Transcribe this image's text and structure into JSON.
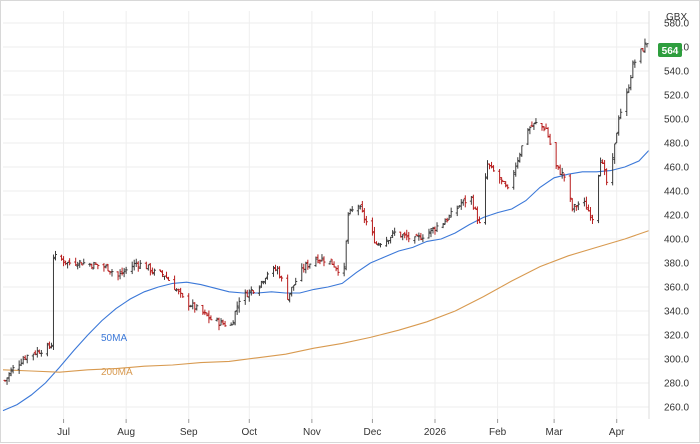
{
  "chart_data": {
    "type": "ohlc",
    "currency_label": "GBX",
    "last_price_label": "564",
    "y_axis": {
      "ylim": [
        250,
        590
      ],
      "ticks": [
        260.0,
        280.0,
        300.0,
        320.0,
        340.0,
        360.0,
        380.0,
        400.0,
        420.0,
        440.0,
        460.0,
        480.0,
        500.0,
        520.0,
        540.0,
        560.0,
        580.0
      ]
    },
    "x_axis": {
      "start_date": "2025-06-01",
      "end_date": "2026-04-17",
      "ticks": [
        {
          "date": "2025-07-01",
          "label": "Jul"
        },
        {
          "date": "2025-08-01",
          "label": "Aug"
        },
        {
          "date": "2025-09-01",
          "label": "Sep"
        },
        {
          "date": "2025-10-01",
          "label": "Oct"
        },
        {
          "date": "2025-11-01",
          "label": "Nov"
        },
        {
          "date": "2025-12-01",
          "label": "Dec"
        },
        {
          "date": "2026-01-01",
          "label": "2026"
        },
        {
          "date": "2026-02-01",
          "label": "Feb"
        },
        {
          "date": "2026-03-01",
          "label": "Mar"
        },
        {
          "date": "2026-04-01",
          "label": "Apr"
        }
      ]
    },
    "close_series": [
      [
        "2025-06-02",
        282
      ],
      [
        "2025-06-05",
        290
      ],
      [
        "2025-06-09",
        297
      ],
      [
        "2025-06-12",
        302
      ],
      [
        "2025-06-16",
        305
      ],
      [
        "2025-06-19",
        307
      ],
      [
        "2025-06-23",
        309
      ],
      [
        "2025-06-25",
        312
      ],
      [
        "2025-06-26",
        385
      ],
      [
        "2025-06-30",
        383
      ],
      [
        "2025-07-03",
        380
      ],
      [
        "2025-07-08",
        381
      ],
      [
        "2025-07-14",
        379
      ],
      [
        "2025-07-18",
        378
      ],
      [
        "2025-07-23",
        376
      ],
      [
        "2025-07-28",
        369
      ],
      [
        "2025-08-01",
        374
      ],
      [
        "2025-08-06",
        380
      ],
      [
        "2025-08-11",
        377
      ],
      [
        "2025-08-15",
        372
      ],
      [
        "2025-08-20",
        370
      ],
      [
        "2025-08-25",
        360
      ],
      [
        "2025-08-29",
        350
      ],
      [
        "2025-09-03",
        344
      ],
      [
        "2025-09-08",
        338
      ],
      [
        "2025-09-12",
        333
      ],
      [
        "2025-09-17",
        330
      ],
      [
        "2025-09-22",
        328
      ],
      [
        "2025-09-26",
        350
      ],
      [
        "2025-10-01",
        356
      ],
      [
        "2025-10-06",
        362
      ],
      [
        "2025-10-10",
        372
      ],
      [
        "2025-10-15",
        375
      ],
      [
        "2025-10-20",
        352
      ],
      [
        "2025-10-24",
        365
      ],
      [
        "2025-10-28",
        376
      ],
      [
        "2025-11-03",
        384
      ],
      [
        "2025-11-07",
        383
      ],
      [
        "2025-11-11",
        380
      ],
      [
        "2025-11-14",
        375
      ],
      [
        "2025-11-17",
        374
      ],
      [
        "2025-11-19",
        420
      ],
      [
        "2025-11-24",
        428
      ],
      [
        "2025-11-28",
        414
      ],
      [
        "2025-12-03",
        396
      ],
      [
        "2025-12-08",
        400
      ],
      [
        "2025-12-12",
        405
      ],
      [
        "2025-12-17",
        402
      ],
      [
        "2025-12-22",
        399
      ],
      [
        "2025-12-29",
        406
      ],
      [
        "2026-01-05",
        414
      ],
      [
        "2026-01-09",
        420
      ],
      [
        "2026-01-14",
        430
      ],
      [
        "2026-01-19",
        434
      ],
      [
        "2026-01-23",
        412
      ],
      [
        "2026-01-27",
        462
      ],
      [
        "2026-02-02",
        450
      ],
      [
        "2026-02-06",
        440
      ],
      [
        "2026-02-10",
        462
      ],
      [
        "2026-02-16",
        492
      ],
      [
        "2026-02-20",
        496
      ],
      [
        "2026-02-25",
        492
      ],
      [
        "2026-03-02",
        460
      ],
      [
        "2026-03-06",
        452
      ],
      [
        "2026-03-10",
        425
      ],
      [
        "2026-03-15",
        432
      ],
      [
        "2026-03-20",
        418
      ],
      [
        "2026-03-24",
        468
      ],
      [
        "2026-03-28",
        440
      ],
      [
        "2026-04-02",
        502
      ],
      [
        "2026-04-06",
        520
      ],
      [
        "2026-04-09",
        545
      ],
      [
        "2026-04-13",
        556
      ],
      [
        "2026-04-16",
        564
      ]
    ],
    "series": [
      {
        "name": "50MA",
        "color": "#3b78d8",
        "points": [
          [
            "2025-06-01",
            257
          ],
          [
            "2025-06-08",
            262
          ],
          [
            "2025-06-15",
            270
          ],
          [
            "2025-06-22",
            280
          ],
          [
            "2025-06-29",
            293
          ],
          [
            "2025-07-06",
            307
          ],
          [
            "2025-07-13",
            320
          ],
          [
            "2025-07-20",
            332
          ],
          [
            "2025-07-27",
            342
          ],
          [
            "2025-08-03",
            350
          ],
          [
            "2025-08-10",
            356
          ],
          [
            "2025-08-17",
            360
          ],
          [
            "2025-08-24",
            363
          ],
          [
            "2025-08-31",
            364
          ],
          [
            "2025-09-07",
            362
          ],
          [
            "2025-09-14",
            359
          ],
          [
            "2025-09-21",
            356
          ],
          [
            "2025-09-28",
            355
          ],
          [
            "2025-10-05",
            355
          ],
          [
            "2025-10-12",
            356
          ],
          [
            "2025-10-19",
            355
          ],
          [
            "2025-10-26",
            355
          ],
          [
            "2025-11-02",
            358
          ],
          [
            "2025-11-09",
            360
          ],
          [
            "2025-11-16",
            363
          ],
          [
            "2025-11-23",
            372
          ],
          [
            "2025-11-30",
            380
          ],
          [
            "2025-12-07",
            385
          ],
          [
            "2025-12-14",
            390
          ],
          [
            "2025-12-21",
            393
          ],
          [
            "2025-12-28",
            398
          ],
          [
            "2026-01-04",
            400
          ],
          [
            "2026-01-11",
            405
          ],
          [
            "2026-01-18",
            412
          ],
          [
            "2026-01-25",
            418
          ],
          [
            "2026-02-01",
            422
          ],
          [
            "2026-02-08",
            425
          ],
          [
            "2026-02-15",
            432
          ],
          [
            "2026-02-22",
            443
          ],
          [
            "2026-03-01",
            451
          ],
          [
            "2026-03-08",
            454
          ],
          [
            "2026-03-15",
            456
          ],
          [
            "2026-03-22",
            456
          ],
          [
            "2026-03-29",
            457
          ],
          [
            "2026-04-05",
            460
          ],
          [
            "2026-04-12",
            465
          ],
          [
            "2026-04-17",
            474
          ]
        ]
      },
      {
        "name": "200MA",
        "color": "#d89a50",
        "points": [
          [
            "2025-06-01",
            291
          ],
          [
            "2025-06-15",
            290
          ],
          [
            "2025-06-29",
            289
          ],
          [
            "2025-07-13",
            291
          ],
          [
            "2025-07-27",
            292
          ],
          [
            "2025-08-10",
            294
          ],
          [
            "2025-08-24",
            295
          ],
          [
            "2025-09-07",
            297
          ],
          [
            "2025-09-21",
            298
          ],
          [
            "2025-10-05",
            301
          ],
          [
            "2025-10-19",
            304
          ],
          [
            "2025-11-02",
            309
          ],
          [
            "2025-11-16",
            313
          ],
          [
            "2025-11-30",
            318
          ],
          [
            "2025-12-14",
            324
          ],
          [
            "2025-12-28",
            331
          ],
          [
            "2026-01-11",
            340
          ],
          [
            "2026-01-25",
            352
          ],
          [
            "2026-02-08",
            365
          ],
          [
            "2026-02-22",
            377
          ],
          [
            "2026-03-08",
            386
          ],
          [
            "2026-03-22",
            393
          ],
          [
            "2026-04-05",
            400
          ],
          [
            "2026-04-17",
            407
          ]
        ]
      }
    ],
    "colors": {
      "up": "#3a3a3a",
      "down": "#b71c1c",
      "last_price_badge": "#2e9e3e",
      "grid": "#eeeeee"
    }
  }
}
